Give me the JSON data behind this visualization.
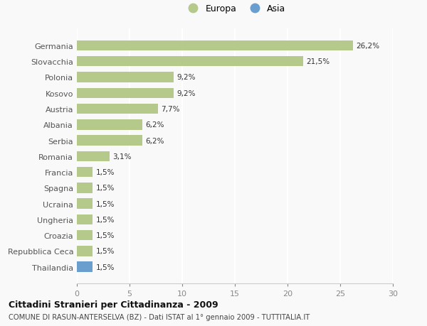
{
  "categories": [
    "Germania",
    "Slovacchia",
    "Polonia",
    "Kosovo",
    "Austria",
    "Albania",
    "Serbia",
    "Romania",
    "Francia",
    "Spagna",
    "Ucraina",
    "Ungheria",
    "Croazia",
    "Repubblica Ceca",
    "Thailandia"
  ],
  "values": [
    26.2,
    21.5,
    9.2,
    9.2,
    7.7,
    6.2,
    6.2,
    3.1,
    1.5,
    1.5,
    1.5,
    1.5,
    1.5,
    1.5,
    1.5
  ],
  "labels": [
    "26,2%",
    "21,5%",
    "9,2%",
    "9,2%",
    "7,7%",
    "6,2%",
    "6,2%",
    "3,1%",
    "1,5%",
    "1,5%",
    "1,5%",
    "1,5%",
    "1,5%",
    "1,5%",
    "1,5%"
  ],
  "colors": [
    "#b5c98a",
    "#b5c98a",
    "#b5c98a",
    "#b5c98a",
    "#b5c98a",
    "#b5c98a",
    "#b5c98a",
    "#b5c98a",
    "#b5c98a",
    "#b5c98a",
    "#b5c98a",
    "#b5c98a",
    "#b5c98a",
    "#b5c98a",
    "#6a9ecf"
  ],
  "europa_color": "#b5c98a",
  "asia_color": "#6a9ecf",
  "xlim": [
    0,
    30
  ],
  "xticks": [
    0,
    5,
    10,
    15,
    20,
    25,
    30
  ],
  "title": "Cittadini Stranieri per Cittadinanza - 2009",
  "subtitle": "COMUNE DI RASUN-ANTERSELVA (BZ) - Dati ISTAT al 1° gennaio 2009 - TUTTITALIA.IT",
  "background_color": "#f9f9f9",
  "grid_color": "#ffffff",
  "legend_europa": "Europa",
  "legend_asia": "Asia"
}
